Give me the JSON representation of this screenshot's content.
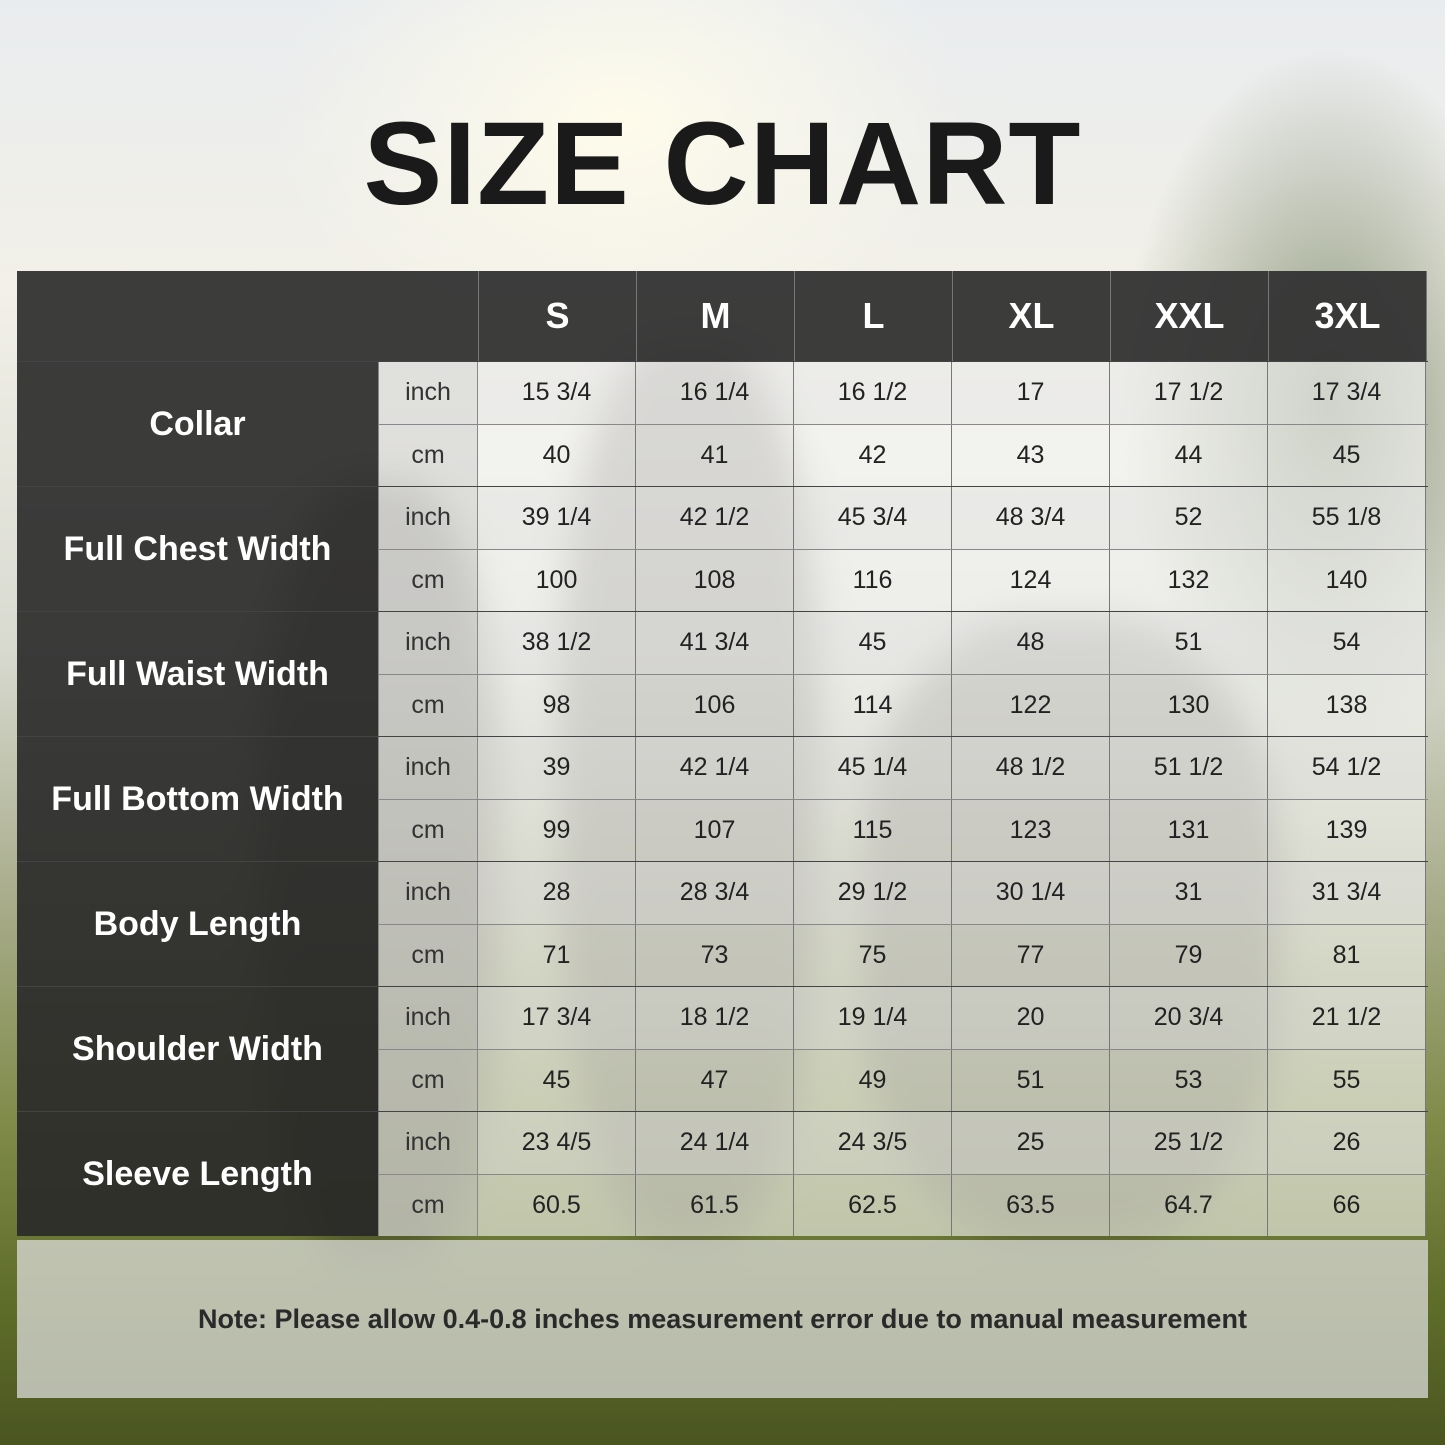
{
  "title": "SIZE CHART",
  "chart_data": {
    "type": "table",
    "title": "SIZE CHART",
    "sizes": [
      "S",
      "M",
      "L",
      "XL",
      "XXL",
      "3XL"
    ],
    "measurements": [
      {
        "name": "Collar",
        "rows": [
          {
            "unit": "inch",
            "values": [
              "15 3/4",
              "16 1/4",
              "16 1/2",
              "17",
              "17 1/2",
              "17 3/4"
            ]
          },
          {
            "unit": "cm",
            "values": [
              "40",
              "41",
              "42",
              "43",
              "44",
              "45"
            ]
          }
        ]
      },
      {
        "name": "Full Chest Width",
        "rows": [
          {
            "unit": "inch",
            "values": [
              "39 1/4",
              "42 1/2",
              "45 3/4",
              "48 3/4",
              "52",
              "55 1/8"
            ]
          },
          {
            "unit": "cm",
            "values": [
              "100",
              "108",
              "116",
              "124",
              "132",
              "140"
            ]
          }
        ]
      },
      {
        "name": "Full Waist Width",
        "rows": [
          {
            "unit": "inch",
            "values": [
              "38 1/2",
              "41 3/4",
              "45",
              "48",
              "51",
              "54"
            ]
          },
          {
            "unit": "cm",
            "values": [
              "98",
              "106",
              "114",
              "122",
              "130",
              "138"
            ]
          }
        ]
      },
      {
        "name": "Full Bottom Width",
        "rows": [
          {
            "unit": "inch",
            "values": [
              "39",
              "42 1/4",
              "45 1/4",
              "48 1/2",
              "51 1/2",
              "54 1/2"
            ]
          },
          {
            "unit": "cm",
            "values": [
              "99",
              "107",
              "115",
              "123",
              "131",
              "139"
            ]
          }
        ]
      },
      {
        "name": "Body Length",
        "rows": [
          {
            "unit": "inch",
            "values": [
              "28",
              "28 3/4",
              "29 1/2",
              "30 1/4",
              "31",
              "31 3/4"
            ]
          },
          {
            "unit": "cm",
            "values": [
              "71",
              "73",
              "75",
              "77",
              "79",
              "81"
            ]
          }
        ]
      },
      {
        "name": "Shoulder Width",
        "rows": [
          {
            "unit": "inch",
            "values": [
              "17 3/4",
              "18 1/2",
              "19 1/4",
              "20",
              "20 3/4",
              "21 1/2"
            ]
          },
          {
            "unit": "cm",
            "values": [
              "45",
              "47",
              "49",
              "51",
              "53",
              "55"
            ]
          }
        ]
      },
      {
        "name": "Sleeve Length",
        "rows": [
          {
            "unit": "inch",
            "values": [
              "23 4/5",
              "24 1/4",
              "24 3/5",
              "25",
              "25 1/2",
              "26"
            ]
          },
          {
            "unit": "cm",
            "values": [
              "60.5",
              "61.5",
              "62.5",
              "63.5",
              "64.7",
              "66"
            ]
          }
        ]
      }
    ]
  },
  "note": "Note: Please allow 0.4-0.8 inches measurement error due to manual measurement",
  "colors": {
    "header": "#343434",
    "label": "#282828",
    "text": "#222222"
  }
}
